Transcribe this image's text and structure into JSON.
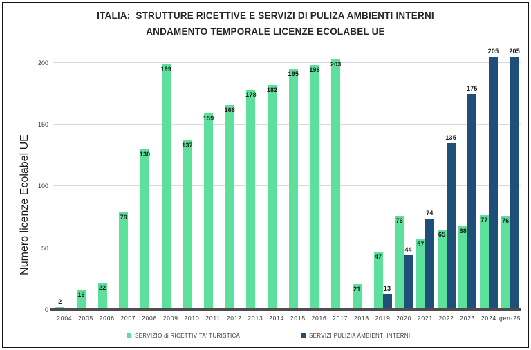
{
  "title": {
    "line1": "ITALIA:  STRUTTURE RICETTIVE E SERVIZI DI PULIZA AMBIENTI INTERNI",
    "line2": "ANDAMENTO TEMPORALE LICENZE ECOLABEL UE"
  },
  "y_axis_title": "Numero licenze Ecolabel UE",
  "legend": [
    {
      "label": "SERVIZIO di RICETTIVITA' TURISTICA",
      "color": "#5CE09B"
    },
    {
      "label": "SERVIZI PULIZIA AMBIENTI INTERNI",
      "color": "#1F4E79"
    }
  ],
  "colors": {
    "series_turistica": "#5CE09B",
    "series_pulizia": "#1F4E79",
    "gridline": "#d9d9d9",
    "axis_line": "#4d4d4d",
    "title_text": "#262626"
  },
  "chart_data": {
    "type": "bar",
    "title": "ITALIA: STRUTTURE RICETTIVE E SERVIZI DI PULIZA AMBIENTI INTERNI — ANDAMENTO TEMPORALE LICENZE ECOLABEL UE",
    "ylabel": "Numero licenze Ecolabel UE",
    "xlabel": "",
    "ylim": [
      0,
      205
    ],
    "yticks": [
      0,
      50,
      100,
      150,
      200
    ],
    "grid": true,
    "legend_position": "bottom",
    "data_labels": true,
    "categories": [
      "2004",
      "2005",
      "2006",
      "2007",
      "2008",
      "2009",
      "2010",
      "2011",
      "2012",
      "2013",
      "2014",
      "2015",
      "2016",
      "2017",
      "2018",
      "2019",
      "2020",
      "2021",
      "2022",
      "2023",
      "2024",
      "gen-25"
    ],
    "series": [
      {
        "name": "SERVIZIO di RICETTIVITA' TURISTICA",
        "color": "#5CE09B",
        "values": [
          2,
          16,
          22,
          79,
          130,
          199,
          137,
          159,
          166,
          178,
          182,
          195,
          198,
          203,
          21,
          47,
          76,
          57,
          65,
          68,
          77,
          76
        ]
      },
      {
        "name": "SERVIZI PULIZIA AMBIENTI INTERNI",
        "color": "#1F4E79",
        "values": [
          null,
          null,
          null,
          null,
          null,
          null,
          null,
          null,
          null,
          null,
          null,
          null,
          null,
          null,
          null,
          13,
          44,
          74,
          135,
          175,
          205,
          205
        ]
      }
    ]
  }
}
